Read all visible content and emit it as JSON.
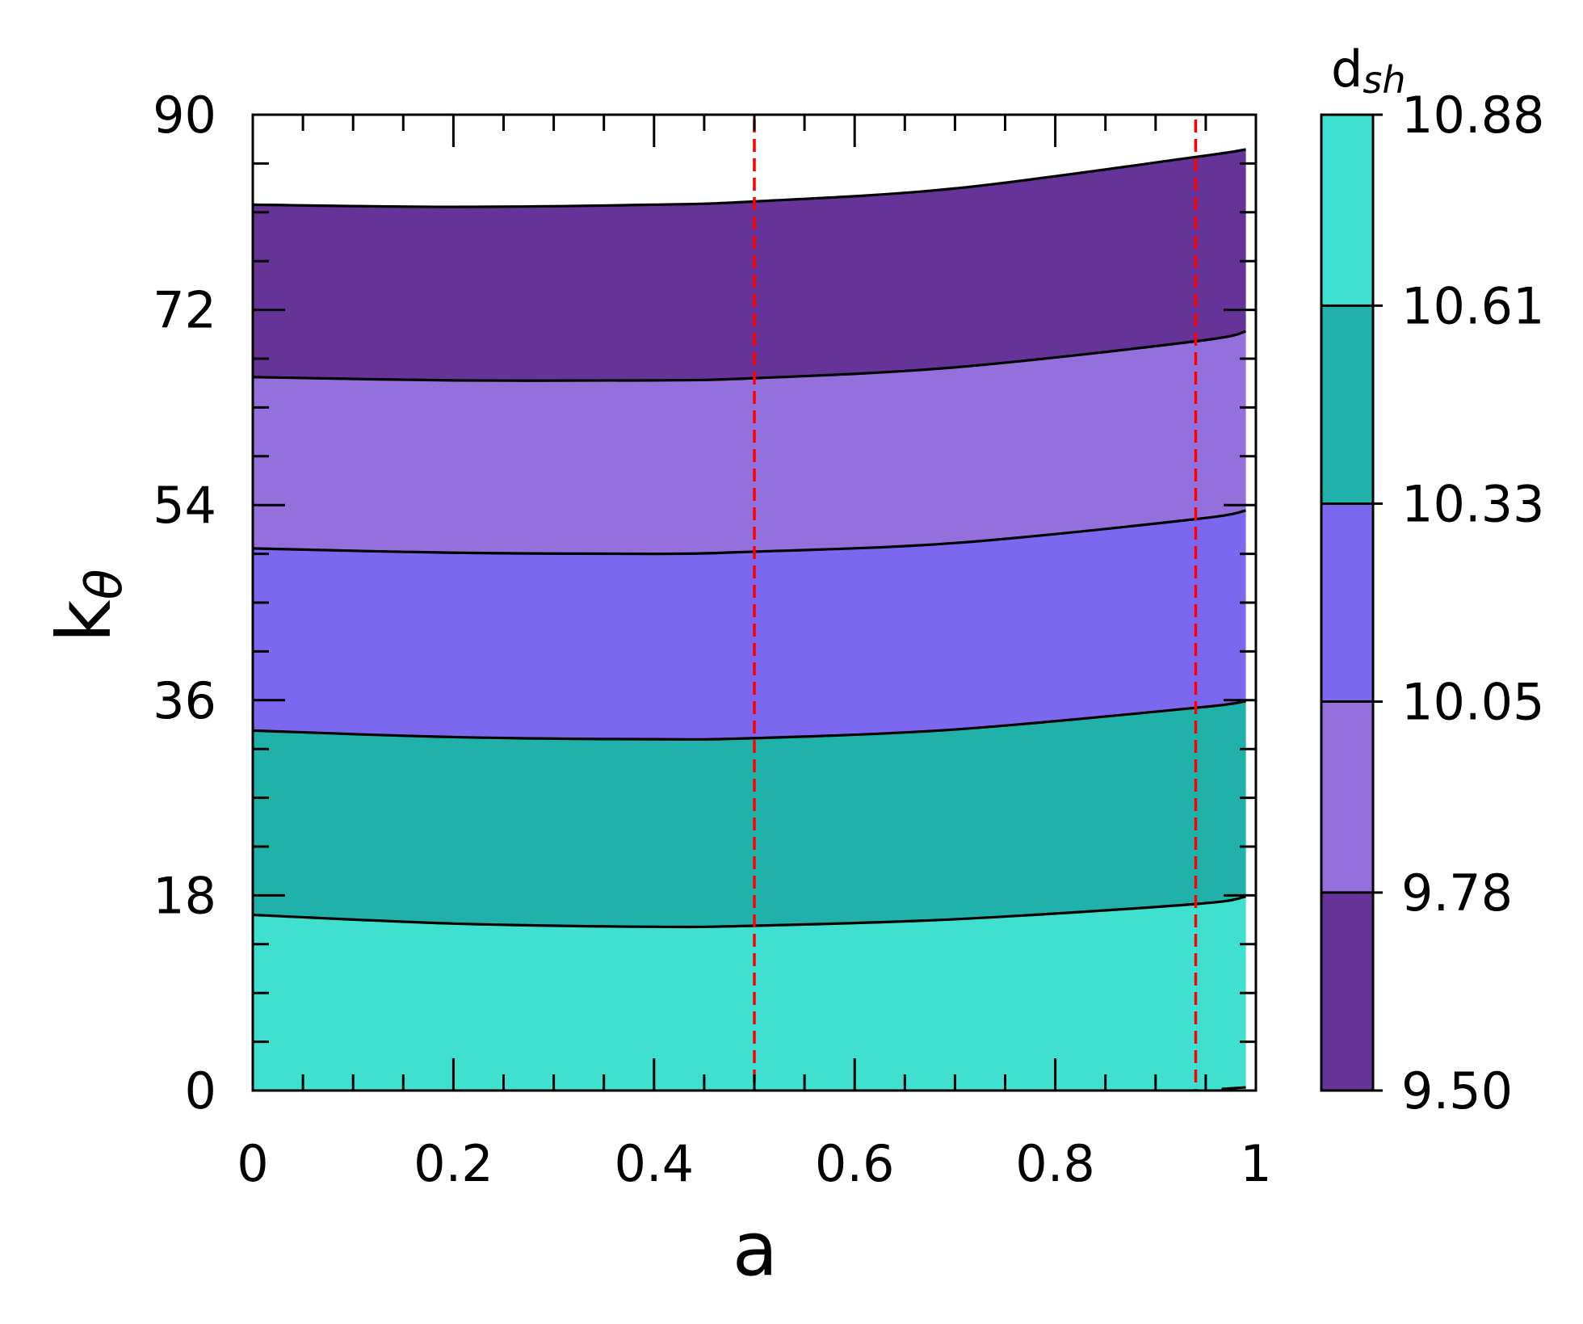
{
  "chart_data": {
    "type": "contour",
    "xlabel": "a",
    "ylabel": "k",
    "ylabel_sub": "θ",
    "xlim": [
      0,
      1
    ],
    "ylim": [
      0,
      90
    ],
    "x_ticks": [
      0,
      0.2,
      0.4,
      0.6,
      0.8,
      1
    ],
    "x_tick_labels": [
      "0",
      "0.2",
      "0.4",
      "0.6",
      "0.8",
      "1"
    ],
    "y_ticks": [
      0,
      18,
      36,
      54,
      72,
      90
    ],
    "y_tick_labels": [
      "0",
      "18",
      "36",
      "54",
      "72",
      "90"
    ],
    "data_x_max": 0.99,
    "contour_lines": [
      {
        "level": 10.61,
        "points": [
          [
            0,
            16.2
          ],
          [
            0.2,
            15.4
          ],
          [
            0.4,
            15.1
          ],
          [
            0.5,
            15.2
          ],
          [
            0.7,
            15.8
          ],
          [
            0.94,
            17.2
          ],
          [
            0.99,
            17.9
          ]
        ]
      },
      {
        "level": 10.33,
        "points": [
          [
            0,
            33.2
          ],
          [
            0.2,
            32.6
          ],
          [
            0.4,
            32.4
          ],
          [
            0.5,
            32.5
          ],
          [
            0.7,
            33.3
          ],
          [
            0.94,
            35.3
          ],
          [
            0.99,
            35.9
          ]
        ]
      },
      {
        "level": 10.05,
        "points": [
          [
            0,
            50.0
          ],
          [
            0.2,
            49.6
          ],
          [
            0.4,
            49.5
          ],
          [
            0.5,
            49.7
          ],
          [
            0.7,
            50.5
          ],
          [
            0.94,
            52.7
          ],
          [
            0.99,
            53.5
          ]
        ]
      },
      {
        "level": 9.78,
        "points": [
          [
            0,
            65.8
          ],
          [
            0.2,
            65.5
          ],
          [
            0.4,
            65.5
          ],
          [
            0.5,
            65.7
          ],
          [
            0.7,
            66.7
          ],
          [
            0.94,
            69.1
          ],
          [
            0.99,
            70.0
          ]
        ]
      },
      {
        "level": 9.5,
        "points": [
          [
            0,
            81.7
          ],
          [
            0.2,
            81.5
          ],
          [
            0.4,
            81.7
          ],
          [
            0.5,
            82.0
          ],
          [
            0.7,
            83.2
          ],
          [
            0.94,
            86.1
          ],
          [
            0.99,
            86.8
          ]
        ]
      }
    ],
    "band_colors": [
      "#40E0D0",
      "#20B2AA",
      "#7B68EE",
      "#9370DB",
      "#663399"
    ],
    "vertical_lines": [
      {
        "x": 0.5,
        "color": "#FF0000",
        "style": "dashed"
      },
      {
        "x": 0.94,
        "color": "#FF0000",
        "style": "dashed"
      }
    ],
    "colorbar": {
      "title": "d",
      "title_sub": "sh",
      "levels": [
        9.5,
        9.78,
        10.05,
        10.33,
        10.61,
        10.88
      ],
      "tick_labels": [
        "9.50",
        "9.78",
        "10.05",
        "10.33",
        "10.61",
        "10.88"
      ],
      "colors": [
        "#663399",
        "#9370DB",
        "#7B68EE",
        "#20B2AA",
        "#40E0D0"
      ]
    }
  }
}
